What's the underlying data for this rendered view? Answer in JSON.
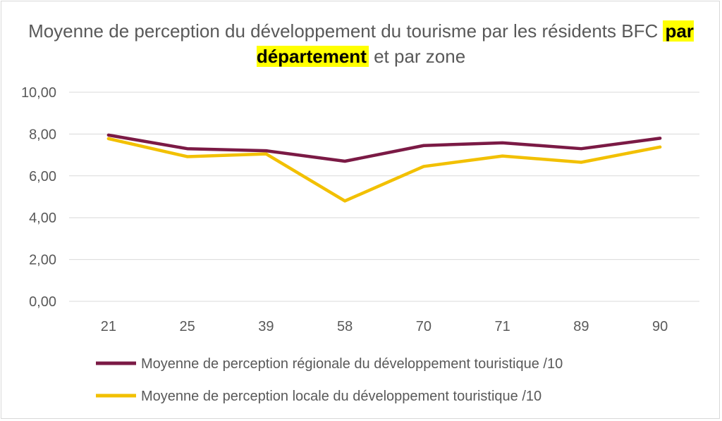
{
  "chart_data": {
    "type": "line",
    "title_parts": {
      "before": "Moyenne de perception du développement du tourisme par les résidents BFC ",
      "highlight": "par département",
      "after": " et par zone"
    },
    "categories": [
      "21",
      "25",
      "39",
      "58",
      "70",
      "71",
      "89",
      "90"
    ],
    "ylim": [
      0,
      10
    ],
    "yticks": [
      "0,00",
      "2,00",
      "4,00",
      "6,00",
      "8,00",
      "10,00"
    ],
    "grid": true,
    "legend_position": "bottom",
    "series": [
      {
        "name": "Moyenne de perception régionale du développement touristique /10",
        "color": "#7b1a45",
        "values": [
          7.95,
          7.3,
          7.2,
          6.7,
          7.45,
          7.58,
          7.3,
          7.8
        ]
      },
      {
        "name": "Moyenne de perception locale du développement touristique /10",
        "color": "#f2c000",
        "values": [
          7.78,
          6.92,
          7.05,
          4.8,
          6.45,
          6.95,
          6.65,
          7.38
        ]
      }
    ]
  }
}
